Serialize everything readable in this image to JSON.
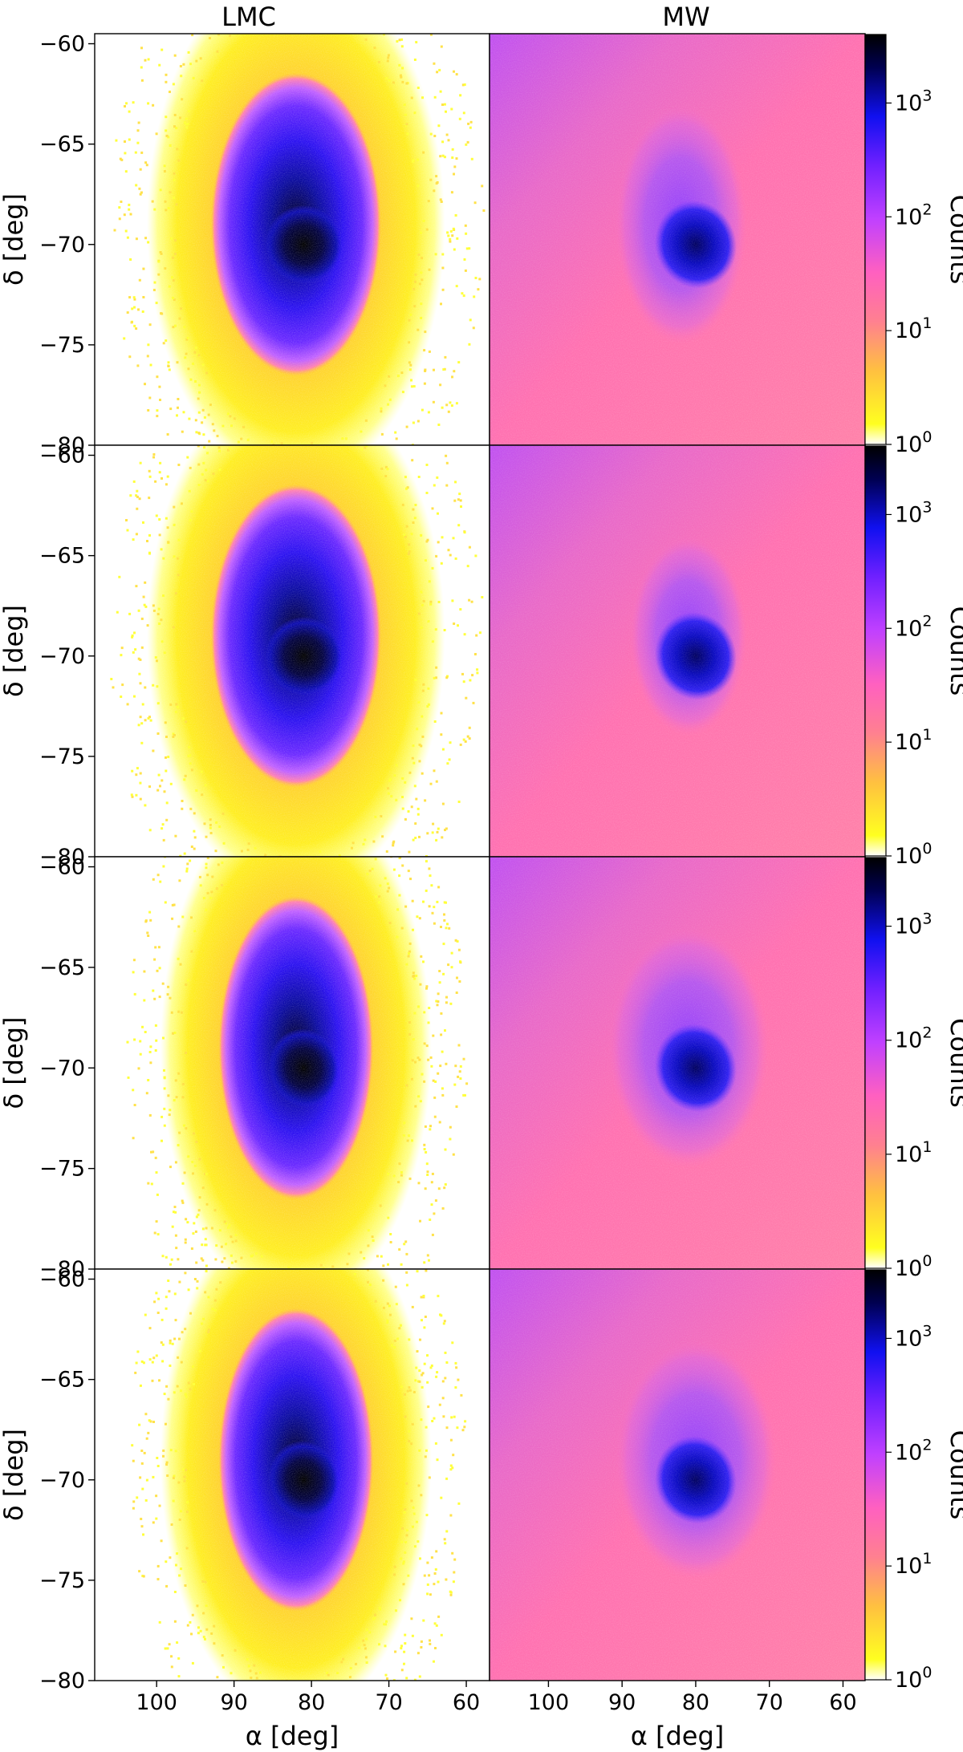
{
  "figure": {
    "column_titles": [
      "LMC",
      "MW"
    ],
    "colorbar_label": "Counts"
  },
  "chart_data": {
    "type": "heatmap",
    "rows": 4,
    "columns": [
      {
        "title": "LMC",
        "background": "sparse"
      },
      {
        "title": "MW",
        "background": "uniform"
      }
    ],
    "xlabel": "α [deg]",
    "ylabel": "δ [deg]",
    "xlim": [
      108,
      57
    ],
    "ylim": [
      -80,
      -59.5
    ],
    "xticks": [
      100,
      90,
      80,
      70,
      60
    ],
    "xtick_labels": [
      "100",
      "90",
      "80",
      "70",
      "60"
    ],
    "yticks": [
      -80,
      -75,
      -70,
      -65,
      -60
    ],
    "ytick_labels": [
      "−80",
      "−75",
      "−70",
      "−65",
      "−60"
    ],
    "colorbar": {
      "label": "Counts",
      "scale": "log",
      "range": [
        1,
        4000
      ],
      "ticks": [
        1,
        10,
        100,
        1000
      ],
      "tick_bases": [
        "10",
        "10",
        "10",
        "10"
      ],
      "tick_exponents": [
        "0",
        "1",
        "2",
        "3"
      ],
      "colormap": [
        "#ffffff",
        "#ffff10",
        "#ffb040",
        "#ff70a0",
        "#ff60c8",
        "#c040ff",
        "#7020ff",
        "#1010f0",
        "#000040",
        "#000000"
      ]
    },
    "panels": [
      {
        "row": 0,
        "column": "LMC",
        "disk_center": [
          82,
          -69
        ],
        "disk_radius_deg": [
          11,
          7
        ],
        "bar_center": [
          81,
          -70
        ],
        "outer_halo": true
      },
      {
        "row": 0,
        "column": "MW",
        "disk_center": [
          82,
          -69
        ],
        "disk_radius_deg": [
          9,
          6
        ],
        "bar_center": [
          80,
          -70
        ],
        "outer_halo": false
      },
      {
        "row": 1,
        "column": "LMC",
        "disk_center": [
          82,
          -69
        ],
        "disk_radius_deg": [
          11,
          7
        ],
        "bar_center": [
          81,
          -70
        ],
        "outer_halo": true
      },
      {
        "row": 1,
        "column": "MW",
        "disk_center": [
          81,
          -69
        ],
        "disk_radius_deg": [
          8,
          5
        ],
        "bar_center": [
          80,
          -70
        ],
        "outer_halo": false
      },
      {
        "row": 2,
        "column": "LMC",
        "disk_center": [
          82,
          -69
        ],
        "disk_radius_deg": [
          10,
          7
        ],
        "bar_center": [
          81,
          -70
        ],
        "outer_halo": true
      },
      {
        "row": 2,
        "column": "MW",
        "disk_center": [
          81,
          -69
        ],
        "disk_radius_deg": [
          11,
          6
        ],
        "bar_center": [
          80,
          -70
        ],
        "outer_halo": false
      },
      {
        "row": 3,
        "column": "LMC",
        "disk_center": [
          82,
          -69
        ],
        "disk_radius_deg": [
          10,
          7
        ],
        "bar_center": [
          81,
          -70
        ],
        "outer_halo": true
      },
      {
        "row": 3,
        "column": "MW",
        "disk_center": [
          80,
          -69
        ],
        "disk_radius_deg": [
          11,
          6
        ],
        "bar_center": [
          80,
          -70
        ],
        "outer_halo": false
      }
    ]
  }
}
